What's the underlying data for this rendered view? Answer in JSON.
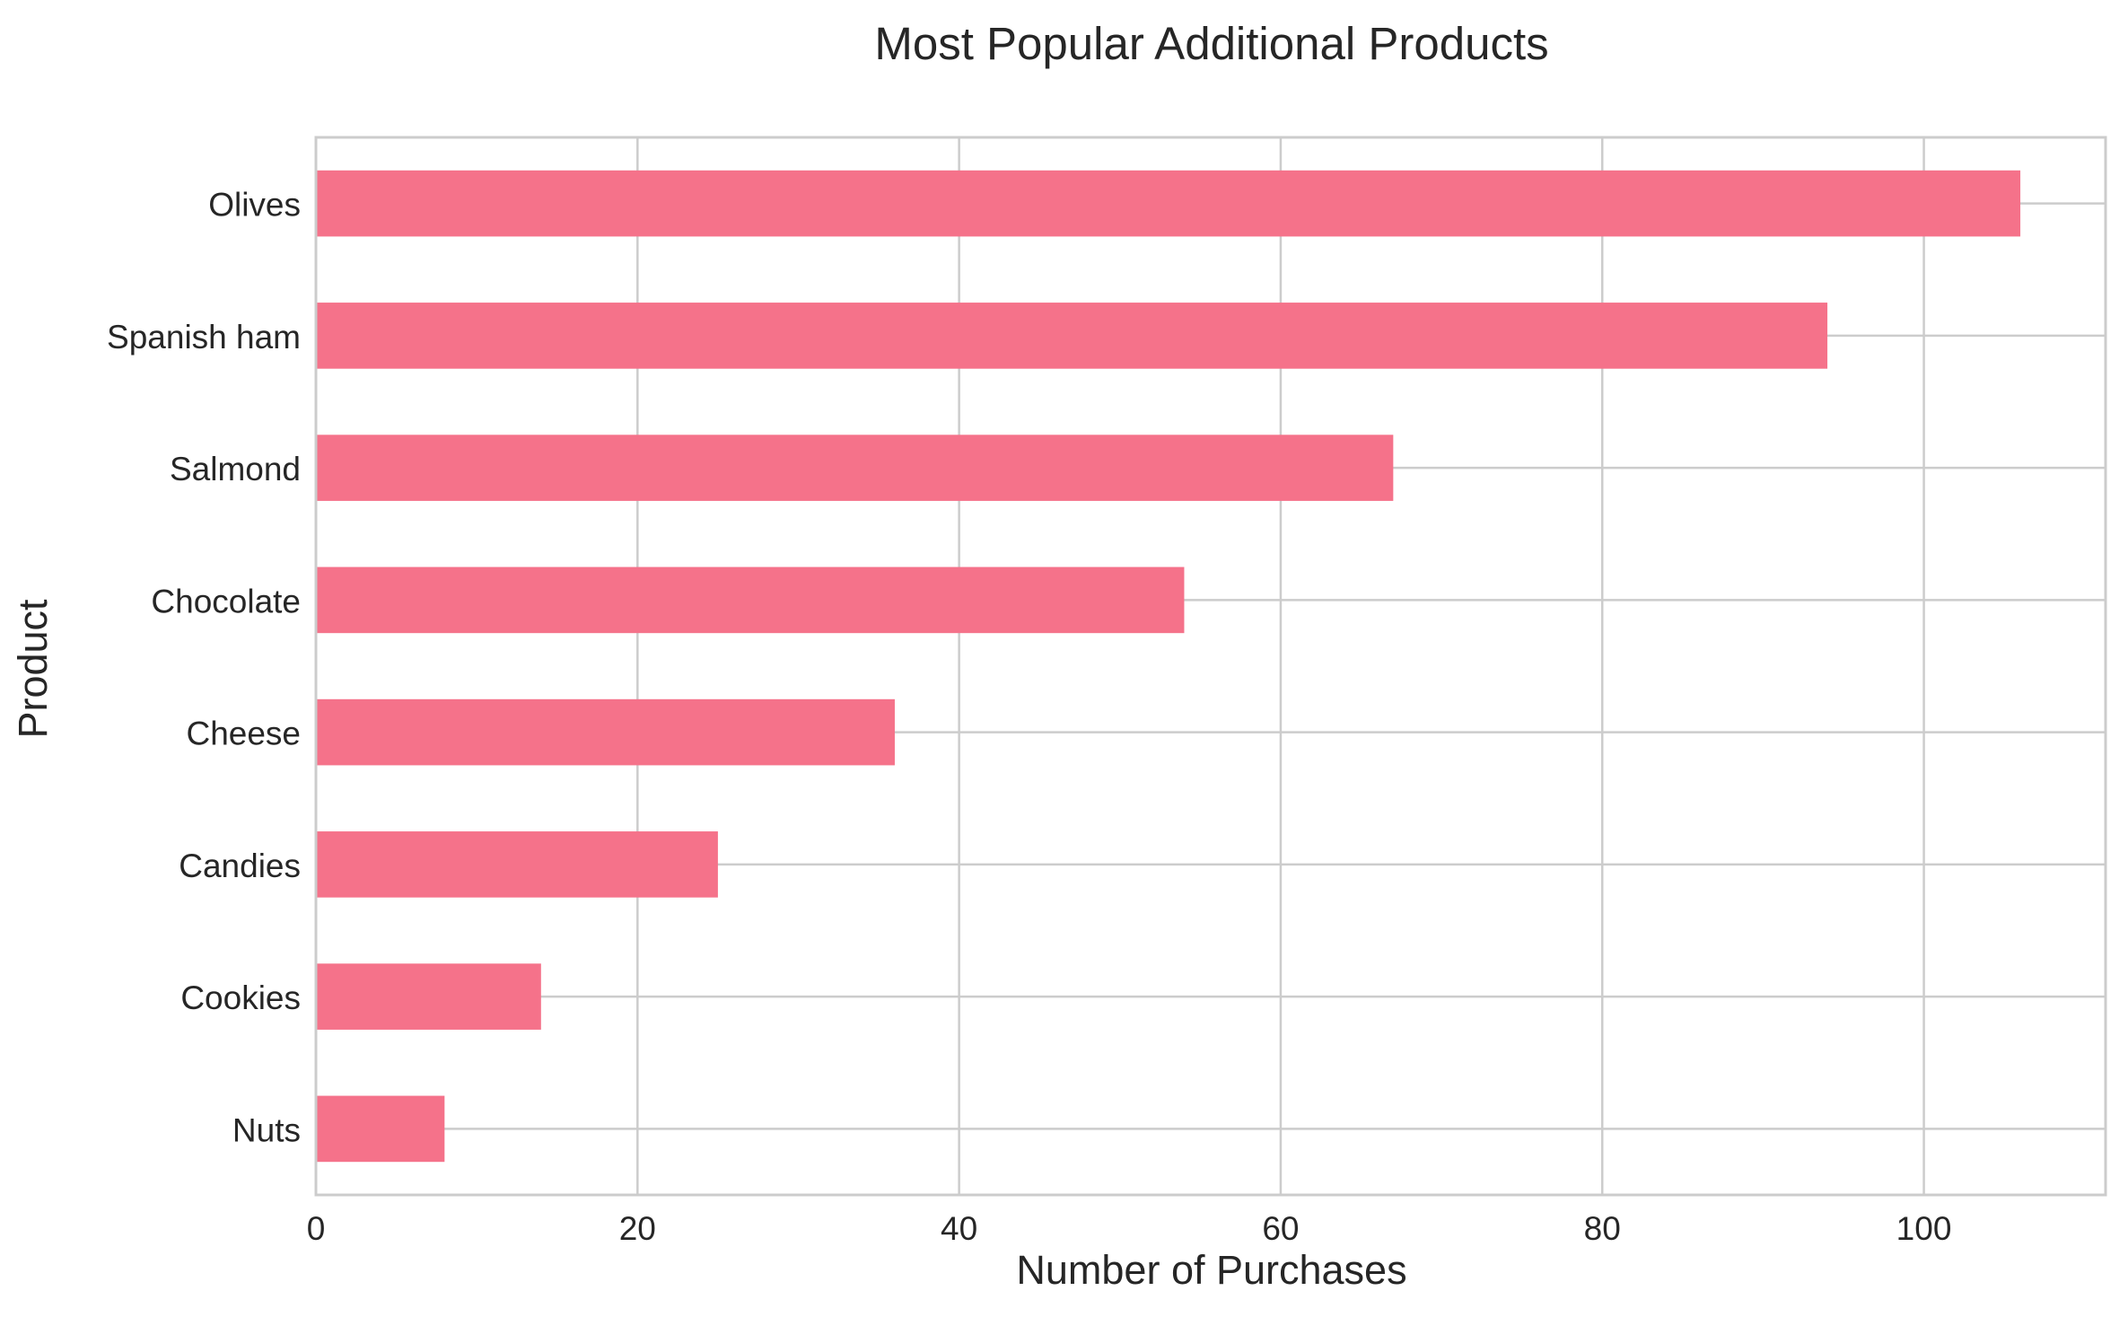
{
  "chart_data": {
    "type": "bar",
    "orientation": "horizontal",
    "title": "Most Popular Additional Products",
    "xlabel": "Number of Purchases",
    "ylabel": "Product",
    "categories": [
      "Olives",
      "Spanish ham",
      "Salmond",
      "Chocolate",
      "Cheese",
      "Candies",
      "Cookies",
      "Nuts"
    ],
    "values": [
      106,
      94,
      67,
      54,
      36,
      25,
      14,
      8
    ],
    "xlim": [
      0,
      111.3
    ],
    "xticks": [
      0,
      20,
      40,
      60,
      80,
      100
    ],
    "grid": true,
    "legend": "none",
    "colors": {
      "bar": "#f5728a",
      "grid": "#cccccc",
      "spine": "#cccccc",
      "text": "#262626",
      "background": "#ffffff"
    }
  }
}
